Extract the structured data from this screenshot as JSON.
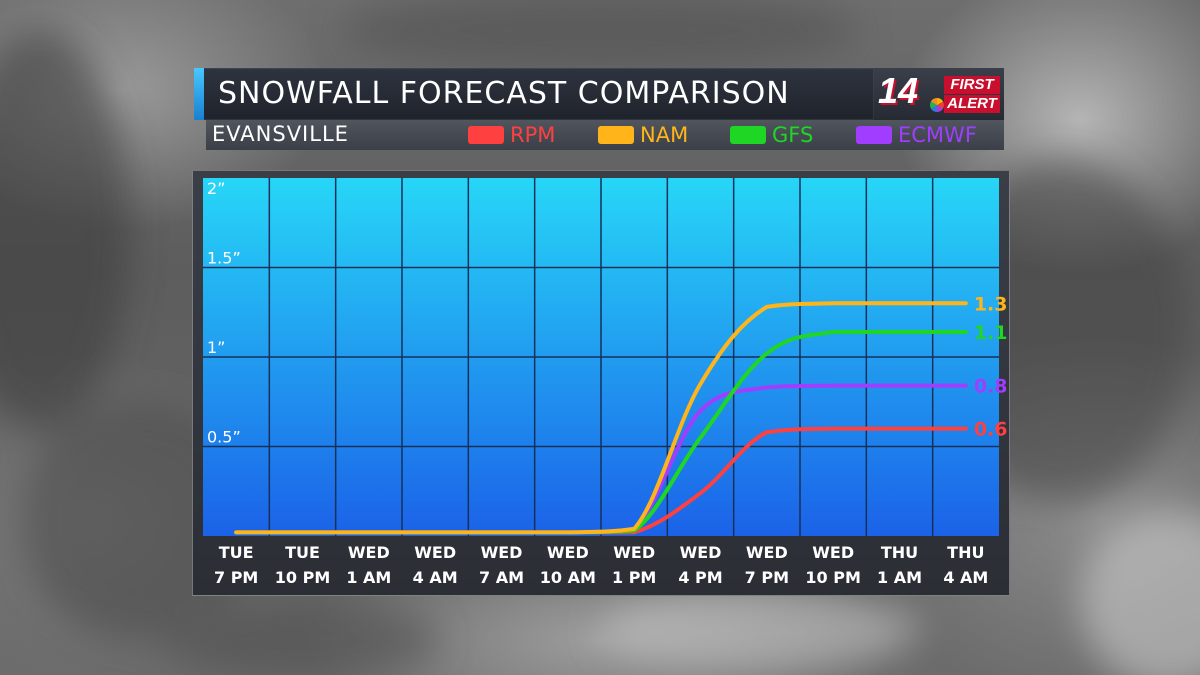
{
  "header": {
    "title": "SNOWFALL FORECAST COMPARISON",
    "location": "EVANSVILLE",
    "logo": {
      "number": "14",
      "line1": "FIRST",
      "line2": "ALERT"
    }
  },
  "colors": {
    "RPM": "#ff4040",
    "NAM": "#ffb51a",
    "GFS": "#1fd624",
    "ECMWF": "#a03dff",
    "plot_top": "#27d6f7",
    "plot_bottom": "#1b62e8"
  },
  "chart_data": {
    "type": "line",
    "x": [
      "TUE 7 PM",
      "TUE 10 PM",
      "WED 1 AM",
      "WED 4 AM",
      "WED 7 AM",
      "WED 10 AM",
      "WED 1 PM",
      "WED 4 PM",
      "WED 7 PM",
      "WED 10 PM",
      "THU 1 AM",
      "THU 4 AM"
    ],
    "x_ticks": [
      {
        "line1": "TUE",
        "line2": "7 PM"
      },
      {
        "line1": "TUE",
        "line2": "10 PM"
      },
      {
        "line1": "WED",
        "line2": "1 AM"
      },
      {
        "line1": "WED",
        "line2": "4 AM"
      },
      {
        "line1": "WED",
        "line2": "7 AM"
      },
      {
        "line1": "WED",
        "line2": "10 AM"
      },
      {
        "line1": "WED",
        "line2": "1 PM"
      },
      {
        "line1": "WED",
        "line2": "4 PM"
      },
      {
        "line1": "WED",
        "line2": "7 PM"
      },
      {
        "line1": "WED",
        "line2": "10 PM"
      },
      {
        "line1": "THU",
        "line2": "1 AM"
      },
      {
        "line1": "THU",
        "line2": "4 AM"
      }
    ],
    "y_ticks": [
      {
        "value": 0.5,
        "label": "0.5”"
      },
      {
        "value": 1,
        "label": "1”"
      },
      {
        "value": 1.5,
        "label": "1.5”"
      },
      {
        "value": 2,
        "label": "2”"
      }
    ],
    "ylim": [
      0,
      2
    ],
    "grid": true,
    "legend_position": "top",
    "series": [
      {
        "name": "RPM",
        "values": [
          0.02,
          0.02,
          0.02,
          0.02,
          0.02,
          0.02,
          0.02,
          0.24,
          0.58,
          0.6,
          0.6,
          0.6
        ],
        "end_label": "0.60”"
      },
      {
        "name": "NAM",
        "values": [
          0.02,
          0.02,
          0.02,
          0.02,
          0.02,
          0.02,
          0.04,
          0.85,
          1.28,
          1.3,
          1.3,
          1.3
        ],
        "end_label": "1.30”"
      },
      {
        "name": "GFS",
        "values": [
          0.02,
          0.02,
          0.02,
          0.02,
          0.02,
          0.02,
          0.03,
          0.55,
          1.02,
          1.14,
          1.14,
          1.14
        ],
        "end_label": "1.14”"
      },
      {
        "name": "ECMWF",
        "values": [
          0.02,
          0.02,
          0.02,
          0.02,
          0.02,
          0.02,
          0.04,
          0.7,
          0.83,
          0.84,
          0.84,
          0.84
        ],
        "end_label": "0.84”"
      }
    ]
  }
}
